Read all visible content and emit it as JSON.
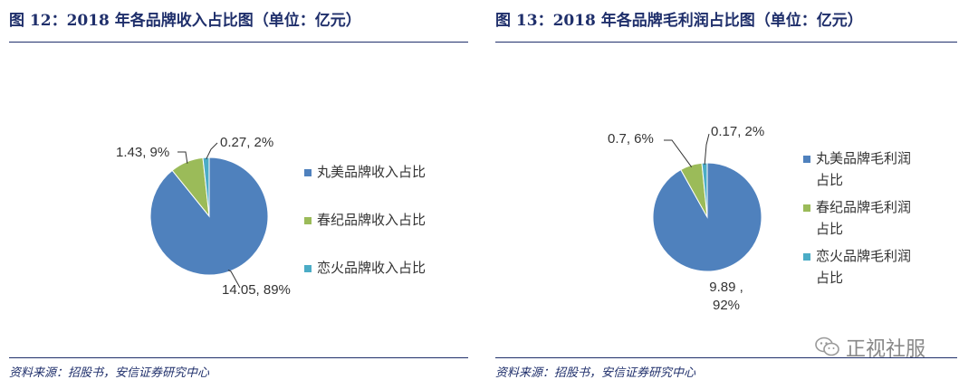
{
  "colors": {
    "navy": "#1f2f6b",
    "s1": "#4f81bd",
    "s2": "#9bbb59",
    "s3": "#4bacc6"
  },
  "left": {
    "title": "图 12：2018 年各品牌收入占比图（单位：亿元）",
    "source": "资料来源：招股书，安信证券研究中心"
  },
  "right": {
    "title": "图 13：2018 年各品牌毛利润占比图（单位：亿元）",
    "source": "资料来源：招股书，安信证券研究中心"
  },
  "watermark": {
    "text": "正视社服",
    "icon": "wechat-icon"
  },
  "chart_data": [
    {
      "type": "pie",
      "title": "图 12：2018 年各品牌收入占比图（单位：亿元）",
      "slices": [
        {
          "name": "丸美品牌收入占比",
          "value": 14.05,
          "percent": 89,
          "color": "#4f81bd",
          "label": "14.05, 89%"
        },
        {
          "name": "春纪品牌收入占比",
          "value": 1.43,
          "percent": 9,
          "color": "#9bbb59",
          "label": "1.43, 9%"
        },
        {
          "name": "恋火品牌收入占比",
          "value": 0.27,
          "percent": 2,
          "color": "#4bacc6",
          "label": "0.27, 2%"
        }
      ],
      "legend_position": "right"
    },
    {
      "type": "pie",
      "title": "图 13：2018 年各品牌毛利润占比图（单位：亿元）",
      "slices": [
        {
          "name": "丸美品牌毛利润占比",
          "value": 9.89,
          "percent": 92,
          "color": "#4f81bd",
          "label_lines": [
            "9.89 ,",
            "92%"
          ]
        },
        {
          "name": "春纪品牌毛利润占比",
          "value": 0.7,
          "percent": 6,
          "color": "#9bbb59",
          "label": "0.7, 6%"
        },
        {
          "name": "恋火品牌毛利润占比",
          "value": 0.17,
          "percent": 2,
          "color": "#4bacc6",
          "label": "0.17, 2%"
        }
      ],
      "legend_lines": [
        [
          "丸美品牌毛利润",
          "占比"
        ],
        [
          "春纪品牌毛利润",
          "占比"
        ],
        [
          "恋火品牌毛利润",
          "占比"
        ]
      ],
      "legend_position": "right"
    }
  ]
}
